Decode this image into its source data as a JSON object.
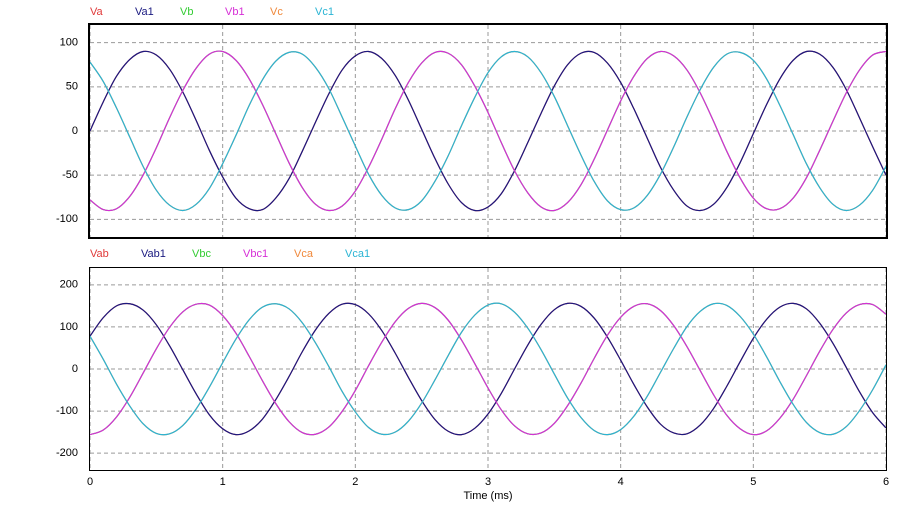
{
  "chart_data": [
    {
      "type": "line",
      "x": [
        0,
        0.1,
        0.2,
        0.3,
        0.4,
        0.5,
        0.6,
        0.7,
        0.8,
        0.9,
        1,
        1.1,
        1.2,
        1.3,
        1.4,
        1.5,
        1.6,
        1.7,
        1.8,
        1.9,
        2,
        2.1,
        2.2,
        2.3,
        2.4,
        2.5,
        2.6,
        2.7,
        2.8,
        2.9,
        3,
        3.1,
        3.2,
        3.3,
        3.4,
        3.5,
        3.6,
        3.7,
        3.8,
        3.9,
        4,
        4.1,
        4.2,
        4.3,
        4.4,
        4.5,
        4.6,
        4.7,
        4.8,
        4.9,
        5,
        5.1,
        5.2,
        5.3,
        5.4,
        5.5,
        5.6,
        5.7,
        5.8,
        5.9,
        6
      ],
      "xlim": [
        0,
        6
      ],
      "xticks": [
        0,
        1,
        2,
        3,
        4,
        5,
        6
      ],
      "ylim": [
        -120,
        120
      ],
      "yticks": [
        -100,
        -50,
        0,
        50,
        100
      ],
      "grid": true,
      "series": [
        {
          "name": "Va",
          "color": "#e03a3a",
          "values": [
            0,
            33,
            62,
            81,
            90,
            86,
            70,
            44,
            12,
            -22,
            -52,
            -76,
            -88,
            -89,
            -76,
            -54,
            -23,
            10,
            42,
            69,
            85,
            90,
            82,
            63,
            35,
            2,
            -31,
            -60,
            -81,
            -90,
            -86,
            -71,
            -45,
            -13,
            20,
            51,
            75,
            88,
            89,
            77,
            55,
            25,
            -8,
            -41,
            -67,
            -85,
            -90,
            -83,
            -64,
            -36,
            -3,
            30,
            59,
            80,
            90,
            87,
            72,
            47,
            15,
            -18,
            -50
          ]
        },
        {
          "name": "Va1",
          "color": "#1a1a80",
          "values": [
            0,
            33,
            62,
            81,
            90,
            86,
            70,
            44,
            12,
            -22,
            -52,
            -76,
            -88,
            -89,
            -76,
            -54,
            -23,
            10,
            42,
            69,
            85,
            90,
            82,
            63,
            35,
            2,
            -31,
            -60,
            -81,
            -90,
            -86,
            -71,
            -45,
            -13,
            20,
            51,
            75,
            88,
            89,
            77,
            55,
            25,
            -8,
            -41,
            -67,
            -85,
            -90,
            -83,
            -64,
            -36,
            -3,
            30,
            59,
            80,
            90,
            87,
            72,
            47,
            15,
            -18,
            -50
          ]
        },
        {
          "name": "Vb",
          "color": "#33cc33",
          "values": [
            -78,
            -89,
            -88,
            -74,
            -50,
            -19,
            15,
            46,
            71,
            87,
            90,
            80,
            59,
            30,
            -3,
            -36,
            -64,
            -83,
            -90,
            -85,
            -68,
            -41,
            -9,
            25,
            55,
            77,
            89,
            88,
            75,
            51,
            21,
            -13,
            -45,
            -70,
            -86,
            -90,
            -81,
            -61,
            -32,
            1,
            34,
            62,
            82,
            90,
            85,
            69,
            43,
            11,
            -23,
            -53,
            -76,
            -88,
            -88,
            -76,
            -53,
            -22,
            11,
            43,
            69,
            86,
            90
          ]
        },
        {
          "name": "Vb1",
          "color": "#d62ed6",
          "values": [
            -78,
            -89,
            -88,
            -74,
            -50,
            -19,
            15,
            46,
            71,
            87,
            90,
            80,
            59,
            30,
            -3,
            -36,
            -64,
            -83,
            -90,
            -85,
            -68,
            -41,
            -9,
            25,
            55,
            77,
            89,
            88,
            75,
            51,
            21,
            -13,
            -45,
            -70,
            -86,
            -90,
            -81,
            -61,
            -32,
            1,
            34,
            62,
            82,
            90,
            85,
            69,
            43,
            11,
            -23,
            -53,
            -76,
            -88,
            -88,
            -76,
            -53,
            -22,
            11,
            43,
            69,
            86,
            90
          ]
        },
        {
          "name": "Vc",
          "color": "#f0883a",
          "values": [
            78,
            56,
            26,
            -7,
            -40,
            -67,
            -84,
            -90,
            -83,
            -65,
            -37,
            -5,
            29,
            58,
            79,
            89,
            87,
            72,
            48,
            16,
            -17,
            -49,
            -73,
            -87,
            -89,
            -79,
            -57,
            -28,
            6,
            38,
            66,
            84,
            90,
            84,
            66,
            39,
            6,
            -27,
            -57,
            -79,
            -89,
            -87,
            -73,
            -49,
            -18,
            16,
            47,
            72,
            87,
            89,
            80,
            59,
            29,
            -4,
            -37,
            -64,
            -83,
            -90,
            -84,
            -67,
            -40
          ]
        },
        {
          "name": "Vc1",
          "color": "#2ab4d4",
          "values": [
            78,
            56,
            26,
            -7,
            -40,
            -67,
            -84,
            -90,
            -83,
            -65,
            -37,
            -5,
            29,
            58,
            79,
            89,
            87,
            72,
            48,
            16,
            -17,
            -49,
            -73,
            -87,
            -89,
            -79,
            -57,
            -28,
            6,
            38,
            66,
            84,
            90,
            84,
            66,
            39,
            6,
            -27,
            -57,
            -79,
            -89,
            -87,
            -73,
            -49,
            -18,
            16,
            47,
            72,
            87,
            89,
            80,
            59,
            29,
            -4,
            -37,
            -64,
            -83,
            -90,
            -84,
            -67,
            -40
          ]
        }
      ]
    },
    {
      "type": "line",
      "x": [
        0,
        0.1,
        0.2,
        0.3,
        0.4,
        0.5,
        0.6,
        0.7,
        0.8,
        0.9,
        1,
        1.1,
        1.2,
        1.3,
        1.4,
        1.5,
        1.6,
        1.7,
        1.8,
        1.9,
        2,
        2.1,
        2.2,
        2.3,
        2.4,
        2.5,
        2.6,
        2.7,
        2.8,
        2.9,
        3,
        3.1,
        3.2,
        3.3,
        3.4,
        3.5,
        3.6,
        3.7,
        3.8,
        3.9,
        4,
        4.1,
        4.2,
        4.3,
        4.4,
        4.5,
        4.6,
        4.7,
        4.8,
        4.9,
        5,
        5.1,
        5.2,
        5.3,
        5.4,
        5.5,
        5.6,
        5.7,
        5.8,
        5.9,
        6
      ],
      "xlim": [
        0,
        6
      ],
      "xticks": [
        0,
        1,
        2,
        3,
        4,
        5,
        6
      ],
      "xlabel": "Time (ms)",
      "ylim": [
        -240,
        240
      ],
      "yticks": [
        -200,
        -100,
        0,
        100,
        200
      ],
      "grid": true,
      "series": [
        {
          "name": "Vab",
          "color": "#e03a3a",
          "values": [
            78,
            122,
            150,
            155,
            140,
            105,
            55,
            -2,
            -59,
            -109,
            -142,
            -156,
            -147,
            -119,
            -73,
            -18,
            41,
            93,
            132,
            154,
            153,
            131,
            91,
            38,
            -20,
            -75,
            -120,
            -148,
            -156,
            -141,
            -107,
            -58,
            0,
            57,
            106,
            141,
            156,
            149,
            121,
            76,
            21,
            -37,
            -90,
            -131,
            -152,
            -154,
            -133,
            -94,
            -41,
            17,
            73,
            118,
            147,
            156,
            143,
            109,
            61,
            4,
            -54,
            -104,
            -140
          ]
        },
        {
          "name": "Vab1",
          "color": "#1a1a80",
          "values": [
            78,
            122,
            150,
            155,
            140,
            105,
            55,
            -2,
            -59,
            -109,
            -142,
            -156,
            -147,
            -119,
            -73,
            -18,
            41,
            93,
            132,
            154,
            153,
            131,
            91,
            38,
            -20,
            -75,
            -120,
            -148,
            -156,
            -141,
            -107,
            -58,
            0,
            57,
            106,
            141,
            156,
            149,
            121,
            76,
            21,
            -37,
            -90,
            -131,
            -152,
            -154,
            -133,
            -94,
            -41,
            17,
            73,
            118,
            147,
            156,
            143,
            109,
            61,
            4,
            -54,
            -104,
            -140
          ]
        },
        {
          "name": "Vbc",
          "color": "#33cc33",
          "values": [
            -156,
            -145,
            -114,
            -67,
            -10,
            48,
            99,
            136,
            154,
            152,
            127,
            85,
            30,
            -28,
            -82,
            -125,
            -151,
            -155,
            -138,
            -101,
            -51,
            8,
            64,
            112,
            144,
            156,
            146,
            116,
            69,
            13,
            -45,
            -97,
            -135,
            -154,
            -152,
            -129,
            -87,
            -34,
            25,
            80,
            123,
            149,
            155,
            139,
            103,
            53,
            -4,
            -61,
            -110,
            -142,
            -156,
            -147,
            -117,
            -72,
            -16,
            42,
            94,
            133,
            153,
            153,
            130
          ]
        },
        {
          "name": "Vbc1",
          "color": "#d62ed6",
          "values": [
            -156,
            -145,
            -114,
            -67,
            -10,
            48,
            99,
            136,
            154,
            152,
            127,
            85,
            30,
            -28,
            -82,
            -125,
            -151,
            -155,
            -138,
            -101,
            -51,
            8,
            64,
            112,
            144,
            156,
            146,
            116,
            69,
            13,
            -45,
            -97,
            -135,
            -154,
            -152,
            -129,
            -87,
            -34,
            25,
            80,
            123,
            149,
            155,
            139,
            103,
            53,
            -4,
            -61,
            -110,
            -142,
            -156,
            -147,
            -117,
            -72,
            -16,
            42,
            94,
            133,
            153,
            153,
            130
          ]
        },
        {
          "name": "Vca",
          "color": "#f0883a",
          "values": [
            78,
            23,
            -36,
            -88,
            -130,
            -153,
            -154,
            -134,
            -95,
            -43,
            15,
            71,
            117,
            147,
            155,
            143,
            110,
            62,
            6,
            -53,
            -102,
            -139,
            -155,
            -150,
            -124,
            -81,
            -26,
            32,
            87,
            128,
            152,
            155,
            135,
            97,
            46,
            -12,
            -69,
            -115,
            -146,
            -156,
            -144,
            -112,
            -65,
            -8,
            49,
            101,
            137,
            155,
            151,
            125,
            83,
            29,
            -30,
            -84,
            -127,
            -151,
            -155,
            -137,
            -99,
            -49,
            10
          ]
        },
        {
          "name": "Vca1",
          "color": "#2ab4d4",
          "values": [
            78,
            23,
            -36,
            -88,
            -130,
            -153,
            -154,
            -134,
            -95,
            -43,
            15,
            71,
            117,
            147,
            155,
            143,
            110,
            62,
            6,
            -53,
            -102,
            -139,
            -155,
            -150,
            -124,
            -81,
            -26,
            32,
            87,
            128,
            152,
            155,
            135,
            97,
            46,
            -12,
            -69,
            -115,
            -146,
            -156,
            -144,
            -112,
            -65,
            -8,
            49,
            101,
            137,
            155,
            151,
            125,
            83,
            29,
            -30,
            -84,
            -127,
            -151,
            -155,
            -137,
            -99,
            -49,
            10
          ]
        }
      ]
    }
  ]
}
